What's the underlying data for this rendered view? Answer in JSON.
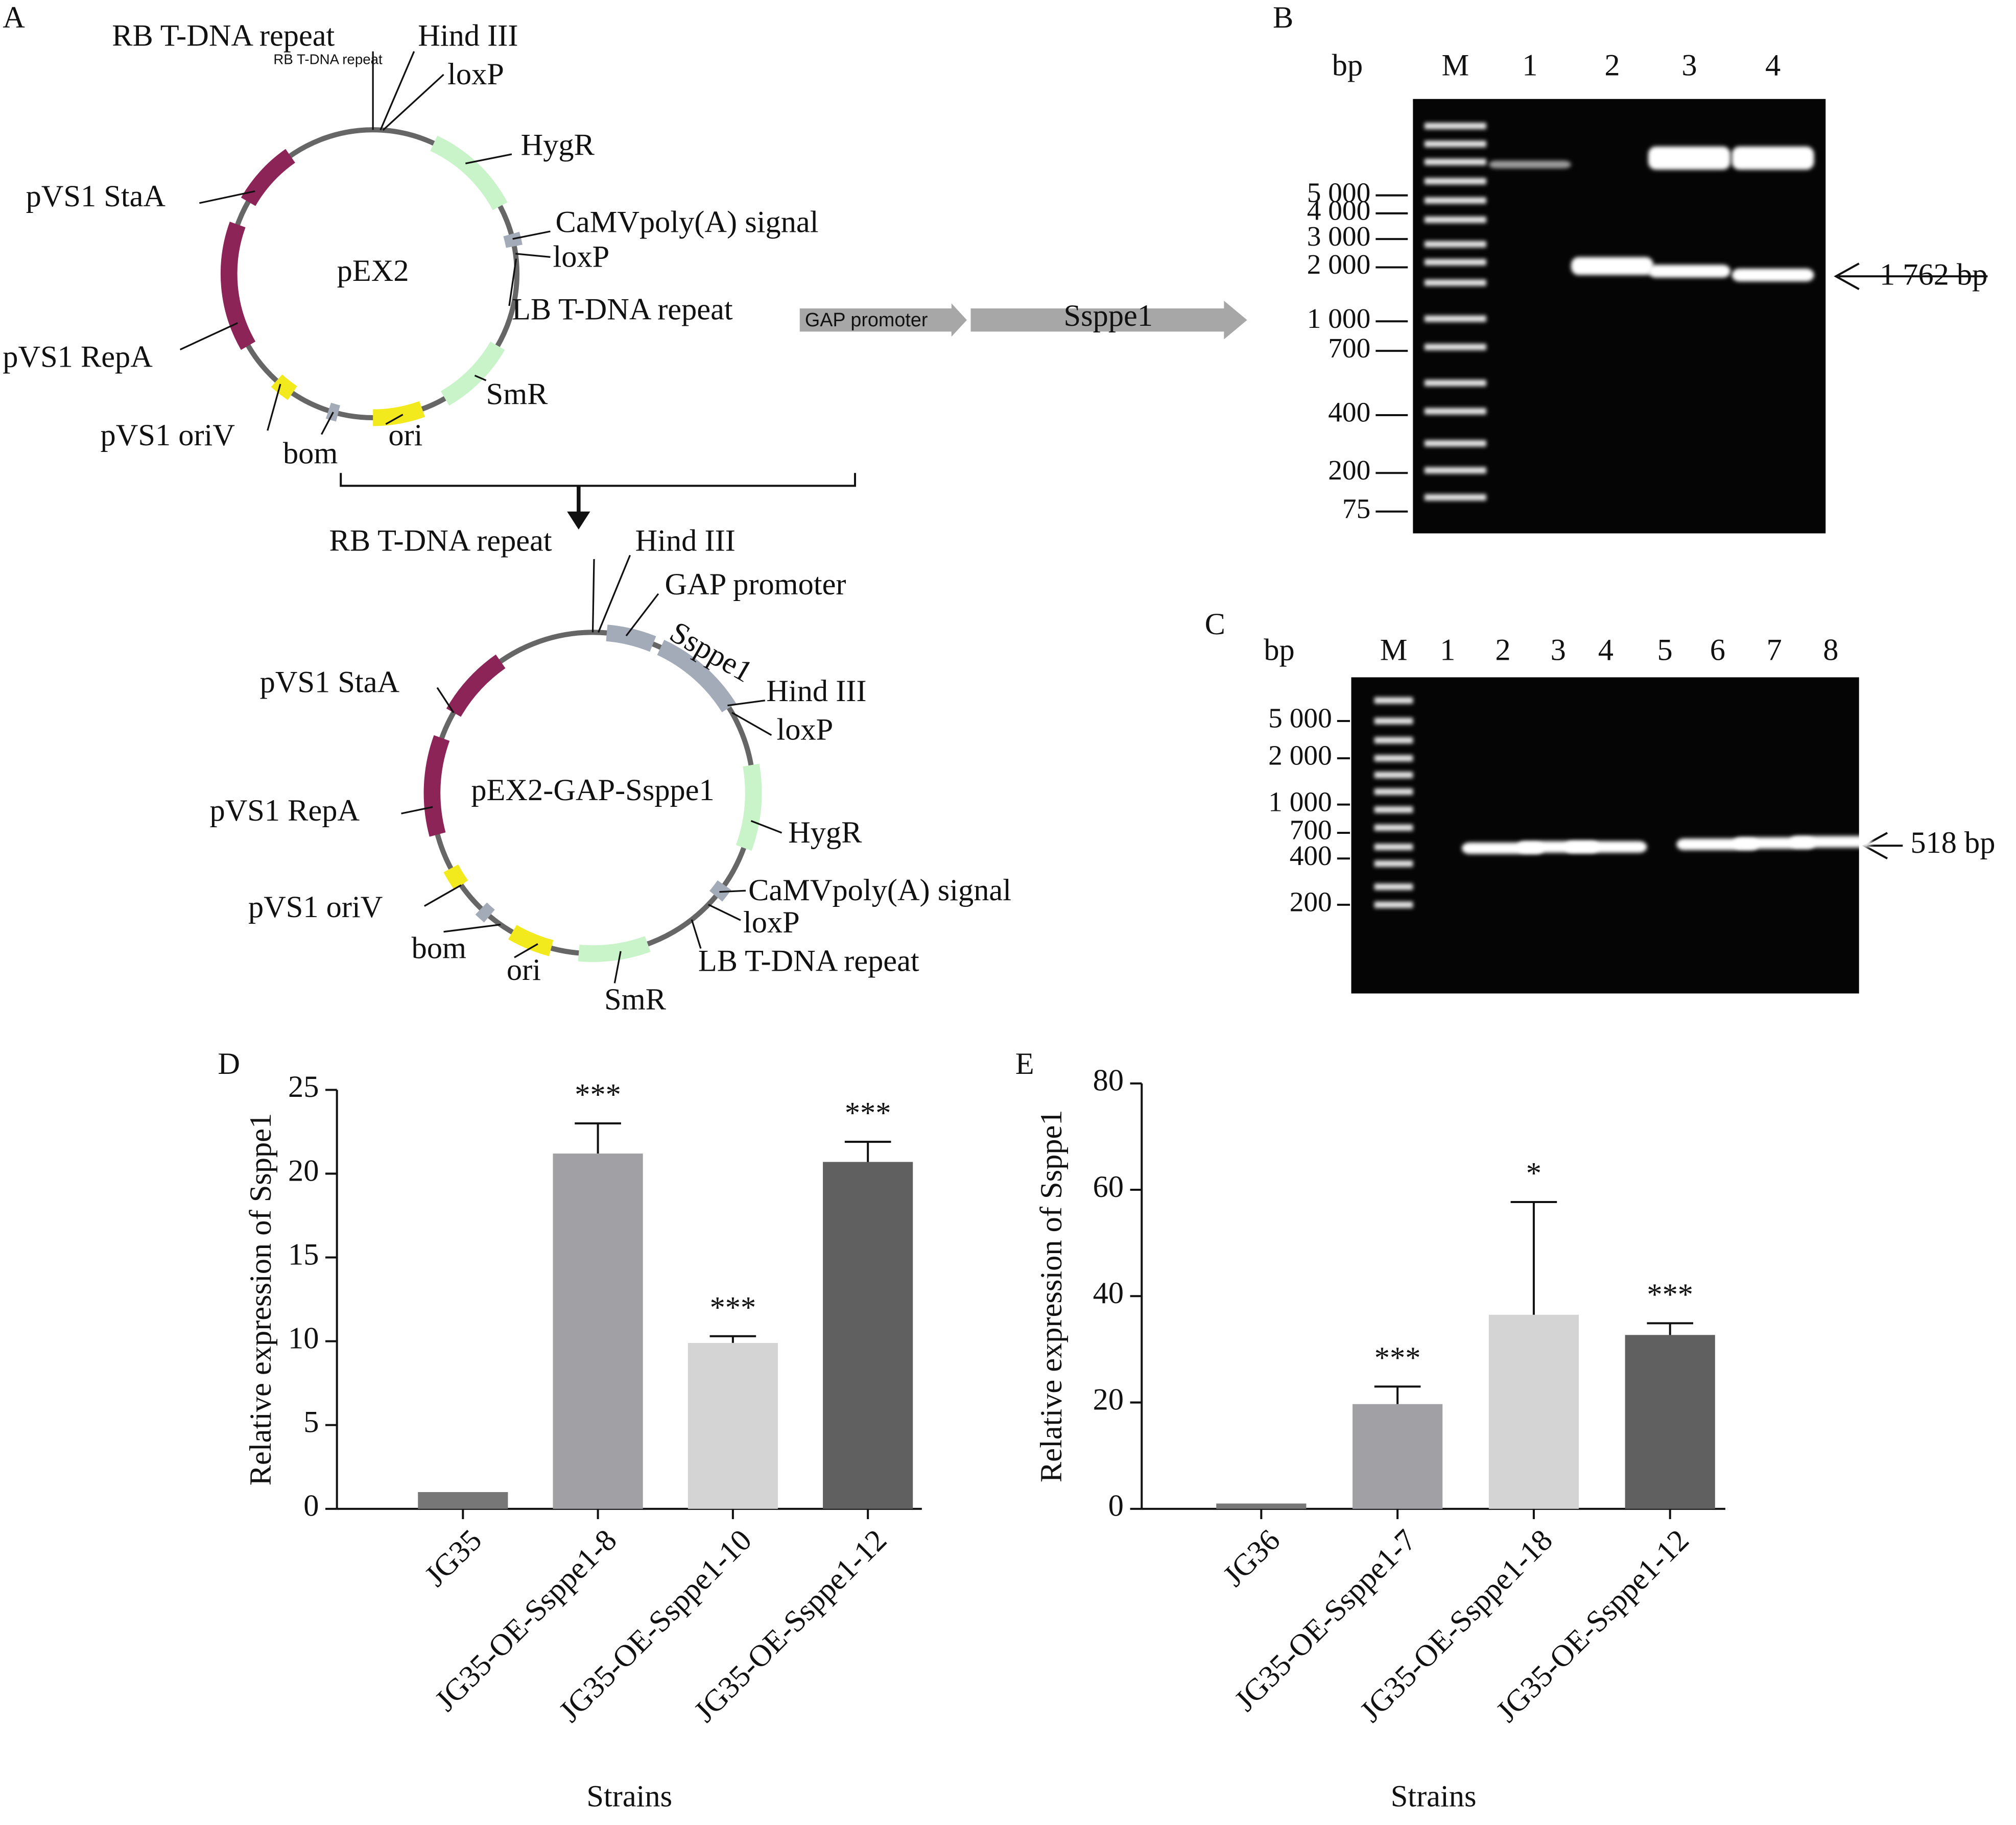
{
  "panel_A": {
    "label": "A",
    "plasmid": {
      "name": "pEX2",
      "features": [
        "RB T-DNA repeat",
        "Hind III",
        "loxP",
        "HygR",
        "CaMVpoly(A) signal",
        "loxP",
        "LB T-DNA repeat",
        "SmR",
        "ori",
        "bom",
        "pVS1 oriV",
        "pVS1 RepA",
        "pVS1 StaA"
      ]
    },
    "insert": [
      "GAP promoter",
      "Ssppe1"
    ],
    "recombinant": {
      "name": "pEX2-GAP-Ssppe1",
      "features": [
        "RB T-DNA repeat",
        "Hind III",
        "GAP promoter",
        "Ssppe1",
        "Hind III",
        "loxP",
        "HygR",
        "CaMVpoly(A) signal",
        "loxP",
        "LB T-DNA repeat",
        "SmR",
        "ori",
        "bom",
        "pVS1 oriV",
        "pVS1 RepA",
        "pVS1 StaA"
      ]
    }
  },
  "panel_B": {
    "label": "B",
    "unit": "bp",
    "lanes": [
      "M",
      "1",
      "2",
      "3",
      "4"
    ],
    "ladder": [
      "5 000",
      "4 000",
      "3 000",
      "2 000",
      "1 000",
      "700",
      "400",
      "200",
      "75"
    ],
    "band_label": "1 762 bp"
  },
  "panel_C": {
    "label": "C",
    "unit": "bp",
    "lanes": [
      "M",
      "1",
      "2",
      "3",
      "4",
      "5",
      "6",
      "7",
      "8"
    ],
    "ladder": [
      "5 000",
      "2 000",
      "1 000",
      "700",
      "400",
      "200"
    ],
    "band_label": "518 bp"
  },
  "chart_data": [
    {
      "type": "bar",
      "panel": "D",
      "categories": [
        "JG35",
        "JG35-OE-Ssppe1-8",
        "JG35-OE-Ssppe1-10",
        "JG35-OE-Ssppe1-12"
      ],
      "values": [
        1,
        21.2,
        9.9,
        20.7
      ],
      "errors": [
        null,
        1.8,
        0.4,
        1.2
      ],
      "annotations": [
        null,
        "***",
        "***",
        "***"
      ],
      "colors": [
        "#777777",
        "#a1a1a5",
        "#d4d4d4",
        "#606060"
      ],
      "ylim": [
        0,
        25
      ],
      "yticks": [
        0,
        5,
        10,
        15,
        20,
        25
      ],
      "ylabel": "Relative expression of Ssppe1",
      "xlabel": "Strains"
    },
    {
      "type": "bar",
      "panel": "E",
      "categories": [
        "JG36",
        "JG35-OE-Ssppe1-7",
        "JG35-OE-Ssppe1-18",
        "JG35-OE-Ssppe1-12"
      ],
      "values": [
        1,
        19.7,
        36.5,
        32.7
      ],
      "errors": [
        null,
        3.3,
        21.2,
        2.2
      ],
      "annotations": [
        null,
        "***",
        "*",
        "***"
      ],
      "colors": [
        "#777777",
        "#a1a1a5",
        "#d4d4d4",
        "#606060"
      ],
      "ylim": [
        0,
        80
      ],
      "yticks": [
        0,
        20,
        40,
        60,
        80
      ],
      "ylabel": "Relative expression of Ssppe1",
      "xlabel": "Strains"
    }
  ]
}
